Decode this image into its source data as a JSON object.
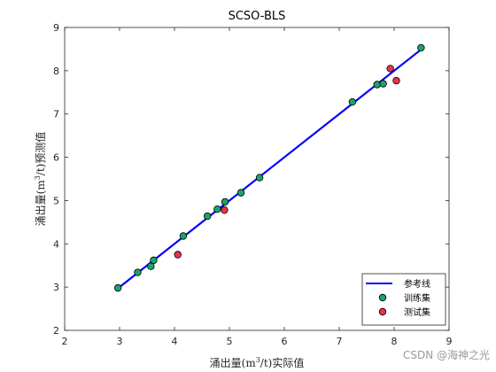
{
  "chart_data": {
    "type": "scatter",
    "title": "SCSO-BLS",
    "xlabel_main": "涌出量(m",
    "xlabel_sup": "3",
    "xlabel_tail": "/t)实际值",
    "ylabel_main": "涌出量(m",
    "ylabel_sup": "3",
    "ylabel_tail": "/t)预测值",
    "xlim": [
      2,
      9
    ],
    "ylim": [
      2,
      9
    ],
    "xticks": [
      "2",
      "3",
      "4",
      "5",
      "6",
      "7",
      "8",
      "9"
    ],
    "yticks": [
      "2",
      "3",
      "4",
      "5",
      "6",
      "7",
      "8",
      "9"
    ],
    "legend_position": "bottom-right",
    "reference_line": {
      "name": "参考线",
      "x": [
        2.97,
        8.5
      ],
      "y": [
        2.97,
        8.5
      ],
      "color": "#0000ff"
    },
    "series": [
      {
        "name": "训练集",
        "color": "#1aa36a",
        "points": [
          {
            "x": 2.97,
            "y": 2.98
          },
          {
            "x": 3.33,
            "y": 3.34
          },
          {
            "x": 3.57,
            "y": 3.48
          },
          {
            "x": 3.62,
            "y": 3.62
          },
          {
            "x": 4.16,
            "y": 4.18
          },
          {
            "x": 4.6,
            "y": 4.64
          },
          {
            "x": 4.78,
            "y": 4.8
          },
          {
            "x": 4.92,
            "y": 4.97
          },
          {
            "x": 5.21,
            "y": 5.18
          },
          {
            "x": 5.55,
            "y": 5.53
          },
          {
            "x": 7.24,
            "y": 7.28
          },
          {
            "x": 7.69,
            "y": 7.68
          },
          {
            "x": 7.8,
            "y": 7.7
          },
          {
            "x": 8.49,
            "y": 8.53
          }
        ]
      },
      {
        "name": "测试集",
        "color": "#e8334d",
        "points": [
          {
            "x": 4.06,
            "y": 3.75
          },
          {
            "x": 4.91,
            "y": 4.78
          },
          {
            "x": 7.93,
            "y": 8.05
          },
          {
            "x": 8.04,
            "y": 7.77
          }
        ]
      }
    ]
  },
  "watermark": "CSDN @海神之光"
}
